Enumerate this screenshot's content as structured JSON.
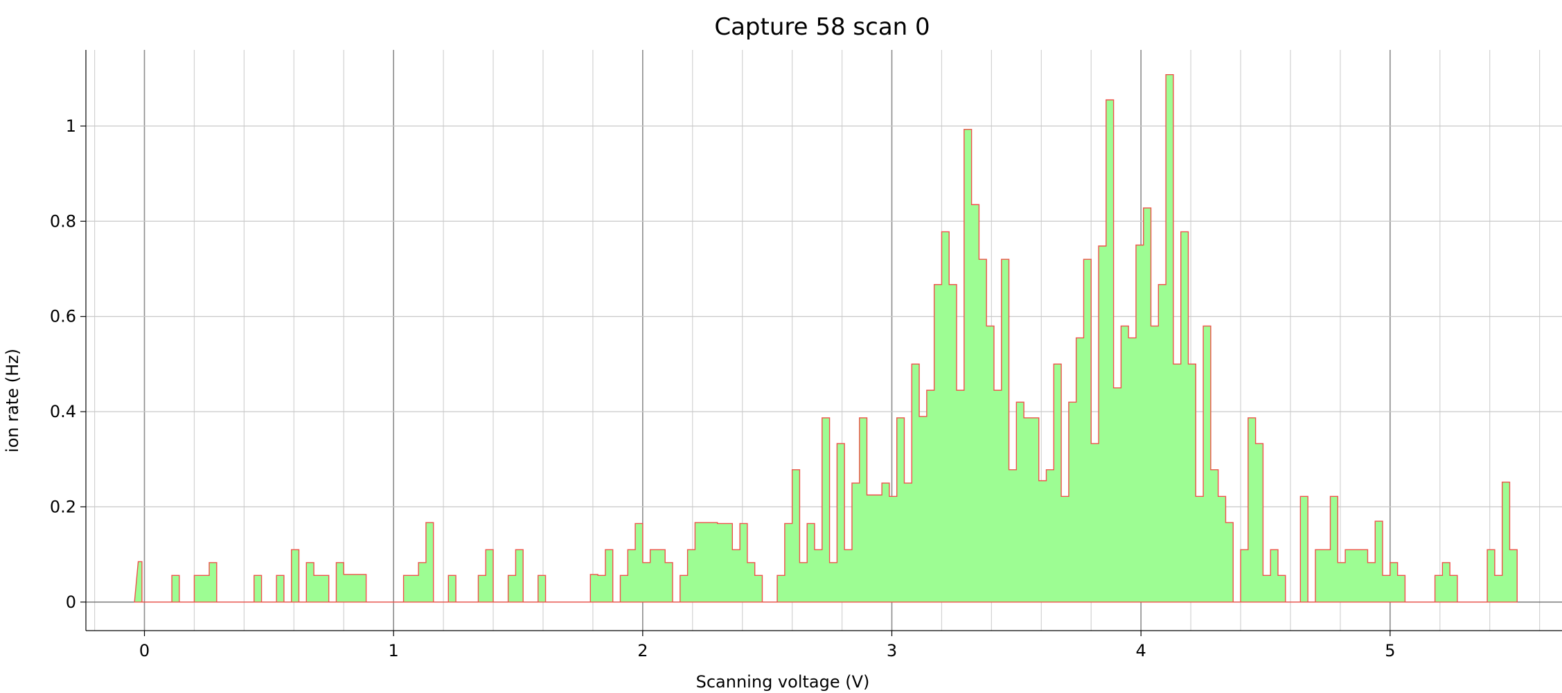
{
  "chart_data": {
    "type": "area",
    "title": "Capture 58 scan 0",
    "xlabel": "Scanning voltage (V)",
    "ylabel": "ion rate (Hz)",
    "xlim": [
      -0.235,
      5.69
    ],
    "ylim": [
      -0.06,
      1.16
    ],
    "xticks": [
      0,
      1,
      2,
      3,
      4,
      5
    ],
    "yticks": [
      0,
      0.2,
      0.4,
      0.6,
      0.8,
      1
    ],
    "grid": true,
    "legend": "none",
    "step": 0.03,
    "series": [
      {
        "x_start": -0.04,
        "values": [
          0.085,
          0,
          0,
          0,
          0,
          0.056,
          0,
          0,
          0.056,
          0.056,
          0.083,
          0,
          0,
          0,
          0,
          0,
          0.056,
          0,
          0,
          0.056,
          0,
          0.11,
          0,
          0.083,
          0.056,
          0.056,
          0,
          0.083,
          0.058,
          0.058,
          0.058,
          0,
          0,
          0,
          0,
          0,
          0.056,
          0.056,
          0.083,
          0.167,
          0,
          0,
          0.056,
          0,
          0,
          0,
          0.056,
          0.11,
          0,
          0,
          0.056,
          0.11,
          0,
          0,
          0.056,
          0,
          0,
          0,
          0,
          0,
          0,
          0.058,
          0.056,
          0.11,
          0,
          0.056,
          0.11,
          0.165,
          0.083,
          0.11,
          0.11,
          0.083,
          0,
          0.056,
          0.11,
          0.167,
          0.167,
          0.167,
          0.165,
          0.165,
          0.11,
          0.165,
          0.083,
          0.056,
          0,
          0,
          0.056,
          0.165,
          0.278,
          0.083,
          0.165,
          0.11,
          0.387,
          0.083,
          0.333,
          0.11,
          0.25,
          0.387,
          0.225,
          0.225,
          0.25,
          0.222,
          0.387,
          0.25,
          0.5,
          0.39,
          0.445,
          0.667,
          0.778,
          0.667,
          0.445,
          0.993,
          0.835,
          0.72,
          0.58,
          0.445,
          0.72,
          0.278,
          0.42,
          0.387,
          0.387,
          0.255,
          0.278,
          0.5,
          0.222,
          0.42,
          0.555,
          0.72,
          0.333,
          0.748,
          1.055,
          0.45,
          0.58,
          0.555,
          0.75,
          0.828,
          0.58,
          0.667,
          1.108,
          0.5,
          0.778,
          0.5,
          0.222,
          0.58,
          0.278,
          0.222,
          0.167,
          0,
          0.11,
          0.387,
          0.333,
          0.056,
          0.11,
          0.056,
          0,
          0,
          0.222,
          0,
          0.11,
          0.11,
          0.222,
          0.083,
          0.11,
          0.11,
          0.11,
          0.083,
          0.17,
          0.056,
          0.083,
          0.056,
          0,
          0,
          0,
          0,
          0.056,
          0.083,
          0.056,
          0,
          0,
          0,
          0,
          0.11,
          0.056,
          0.252,
          0.11
        ]
      }
    ]
  }
}
